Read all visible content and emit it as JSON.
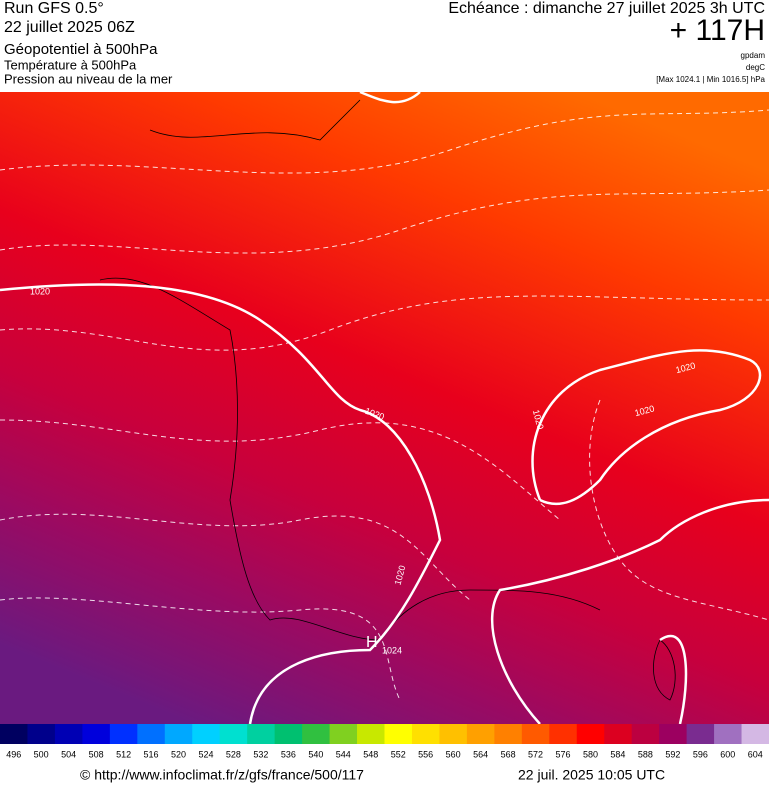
{
  "header": {
    "run": "Run GFS 0.5°",
    "date": "22 juillet 2025 06Z",
    "fields": [
      "Géopotentiel à 500hPa",
      "Température à 500hPa",
      "Pression au niveau de la mer"
    ],
    "valid": "Echéance : dimanche 27 juillet 2025 3h UTC",
    "lead": "+ 117H",
    "units": [
      "gpdam",
      "degC",
      "[Max 1024.1 | Min 1016.5] hPa"
    ]
  },
  "map": {
    "contour_labels": [
      "1020",
      "1020",
      "1020",
      "1020",
      "1020",
      "1020"
    ],
    "high": {
      "letter": "H",
      "value": "1024"
    }
  },
  "legend": {
    "items": [
      {
        "label": "496",
        "color": "#000060"
      },
      {
        "label": "500",
        "color": "#00008b"
      },
      {
        "label": "504",
        "color": "#0000b4"
      },
      {
        "label": "508",
        "color": "#0000dc"
      },
      {
        "label": "512",
        "color": "#0030ff"
      },
      {
        "label": "516",
        "color": "#0070ff"
      },
      {
        "label": "520",
        "color": "#00a8ff"
      },
      {
        "label": "524",
        "color": "#00d0ff"
      },
      {
        "label": "528",
        "color": "#00e0d0"
      },
      {
        "label": "532",
        "color": "#00d0a0"
      },
      {
        "label": "536",
        "color": "#00c070"
      },
      {
        "label": "540",
        "color": "#30c040"
      },
      {
        "label": "544",
        "color": "#80d020"
      },
      {
        "label": "548",
        "color": "#c8e800"
      },
      {
        "label": "552",
        "color": "#ffff00"
      },
      {
        "label": "556",
        "color": "#ffe000"
      },
      {
        "label": "560",
        "color": "#ffc000"
      },
      {
        "label": "564",
        "color": "#ffa000"
      },
      {
        "label": "568",
        "color": "#ff8000"
      },
      {
        "label": "572",
        "color": "#ff5a00"
      },
      {
        "label": "576",
        "color": "#ff3000"
      },
      {
        "label": "580",
        "color": "#ff0000"
      },
      {
        "label": "584",
        "color": "#dc0020"
      },
      {
        "label": "588",
        "color": "#bc0040"
      },
      {
        "label": "592",
        "color": "#9c0060"
      },
      {
        "label": "596",
        "color": "#7a2c90"
      },
      {
        "label": "600",
        "color": "#a070c0"
      },
      {
        "label": "604",
        "color": "#d4b8e4"
      }
    ]
  },
  "footer": {
    "source": "© http://www.infoclimat.fr/z/gfs/france/500/117",
    "generated": "22 juil. 2025 10:05 UTC"
  }
}
